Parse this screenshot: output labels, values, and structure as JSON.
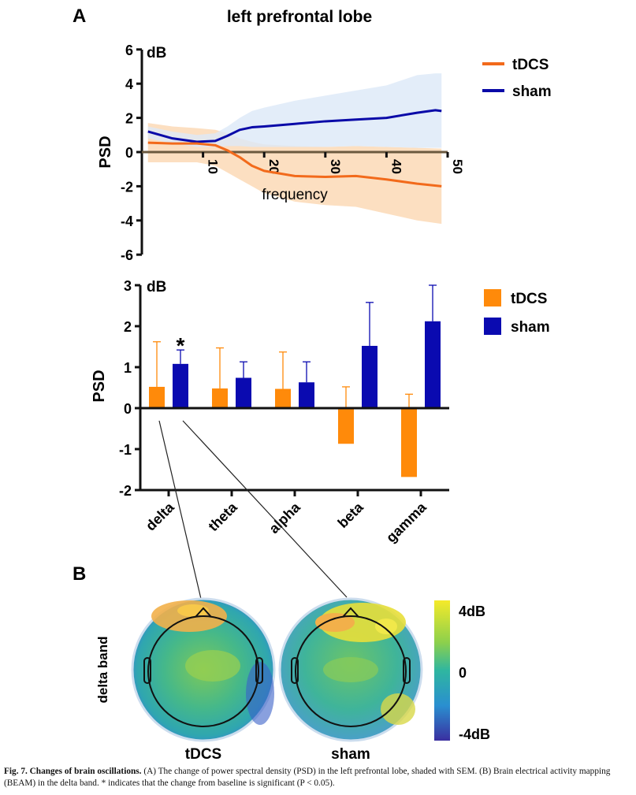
{
  "panel_a_label": "A",
  "panel_b_label": "B",
  "chart_data": [
    {
      "type": "line",
      "title": "left prefrontal lobe",
      "xlabel": "frequency",
      "ylabel": "PSD",
      "yunit": "dB",
      "xlim": [
        0,
        50
      ],
      "ylim": [
        -6,
        6
      ],
      "xticks": [
        "10",
        "20",
        "30",
        "40",
        "50"
      ],
      "yticks": [
        "6",
        "4",
        "2",
        "0",
        "-2",
        "-4",
        "-6"
      ],
      "legend": "top-right",
      "series": [
        {
          "name": "tDCS",
          "color": "#f26a1b",
          "band_color": "#fbd9b6",
          "x": [
            1,
            5,
            9,
            12,
            14,
            16,
            18,
            20,
            25,
            30,
            35,
            40,
            45,
            49
          ],
          "y": [
            0.55,
            0.5,
            0.5,
            0.4,
            0.1,
            -0.3,
            -0.8,
            -1.1,
            -1.4,
            -1.45,
            -1.4,
            -1.6,
            -1.85,
            -2.0
          ],
          "upper": [
            1.7,
            1.5,
            1.4,
            1.3,
            1.1,
            0.8,
            0.6,
            0.45,
            0.35,
            0.3,
            0.35,
            0.3,
            0.25,
            0.2
          ],
          "lower": [
            -0.6,
            -0.6,
            -0.6,
            -0.8,
            -1.2,
            -1.6,
            -2.0,
            -2.4,
            -2.9,
            -3.1,
            -3.2,
            -3.6,
            -4.0,
            -4.2
          ]
        },
        {
          "name": "sham",
          "color": "#0a0aa8",
          "band_color": "#dce8f8",
          "x": [
            1,
            5,
            9,
            12,
            14,
            16,
            18,
            20,
            25,
            30,
            35,
            40,
            45,
            48,
            49
          ],
          "y": [
            1.2,
            0.8,
            0.6,
            0.65,
            0.95,
            1.3,
            1.45,
            1.5,
            1.65,
            1.8,
            1.9,
            2.0,
            2.3,
            2.45,
            2.4
          ],
          "upper": [
            1.5,
            1.2,
            1.0,
            1.1,
            1.5,
            2.0,
            2.4,
            2.6,
            3.0,
            3.3,
            3.6,
            3.9,
            4.5,
            4.6,
            4.6
          ],
          "lower": [
            0.8,
            0.5,
            0.3,
            0.3,
            0.35,
            0.35,
            0.3,
            0.3,
            0.3,
            0.3,
            0.35,
            0.3,
            0.25,
            0.25,
            0.25
          ]
        }
      ]
    },
    {
      "type": "bar",
      "ylabel": "PSD",
      "yunit": "dB",
      "ylim": [
        -2,
        3
      ],
      "yticks": [
        "3",
        "2",
        "1",
        "0",
        "-1",
        "-2"
      ],
      "categories": [
        "delta",
        "theta",
        "alpha",
        "beta",
        "gamma"
      ],
      "legend": "top-right",
      "significance": [
        {
          "category": "delta",
          "series": "sham",
          "label": "*"
        }
      ],
      "series": [
        {
          "name": "tDCS",
          "color": "#ff8a0a",
          "values": [
            0.52,
            0.48,
            0.47,
            -0.87,
            -1.68
          ],
          "error_top": [
            1.62,
            1.47,
            1.37,
            0.52,
            0.34
          ]
        },
        {
          "name": "sham",
          "color": "#0a0ab0",
          "values": [
            1.08,
            0.74,
            0.63,
            1.52,
            2.12
          ],
          "error_top": [
            1.42,
            1.13,
            1.13,
            2.58,
            3.0
          ]
        }
      ]
    }
  ],
  "topomaps": {
    "row_label": "delta band",
    "maps": [
      {
        "label": "tDCS"
      },
      {
        "label": "sham"
      }
    ],
    "colorbar": {
      "max_label": "4dB",
      "mid_label": "0",
      "min_label": "-4dB",
      "colors": [
        "#f5ea2a",
        "#8cd04c",
        "#2fb6a0",
        "#2a8fd0",
        "#3a2fa0"
      ]
    }
  },
  "caption": {
    "bold": "Fig. 7. Changes of brain oscillations.",
    "text": " (A) The change of power spectral density (PSD) in the left prefrontal lobe, shaded with SEM. (B) Brain electrical activity mapping (BEAM) in the delta band. * indicates that the change from baseline is significant (P < 0.05)."
  }
}
